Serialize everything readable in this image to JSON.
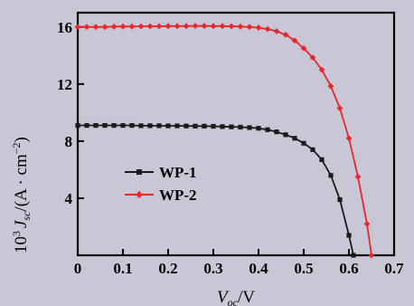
{
  "chart_data": {
    "type": "line",
    "xlabel_main": "V",
    "xlabel_sub": "oc",
    "xlabel_unit": "/V",
    "ylabel_prefix": "10",
    "ylabel_exp": "3",
    "ylabel_main": "J",
    "ylabel_sub": "sc",
    "ylabel_unit_open": "/(A · cm",
    "ylabel_unit_exp": "−2",
    "ylabel_unit_close": ")",
    "xlim": [
      0,
      0.7
    ],
    "ylim": [
      0,
      17
    ],
    "xticks": [
      0,
      0.1,
      0.2,
      0.3,
      0.4,
      0.5,
      0.6,
      0.7
    ],
    "xtick_labels": [
      "0",
      "0.1",
      "0.2",
      "0.3",
      "0.4",
      "0.5",
      "0.6",
      "0.7"
    ],
    "yticks": [
      4,
      8,
      12,
      16
    ],
    "ytick_labels": [
      "4",
      "8",
      "12",
      "16"
    ],
    "grid": false,
    "legend_position": "middle-left",
    "series": [
      {
        "name": "WP-1",
        "color": "#1a1a1a",
        "marker": "square",
        "x": [
          0,
          0.02,
          0.04,
          0.06,
          0.08,
          0.1,
          0.12,
          0.14,
          0.16,
          0.18,
          0.2,
          0.22,
          0.24,
          0.26,
          0.28,
          0.3,
          0.32,
          0.34,
          0.36,
          0.38,
          0.4,
          0.42,
          0.44,
          0.46,
          0.48,
          0.5,
          0.52,
          0.54,
          0.56,
          0.58,
          0.6,
          0.61
        ],
        "y": [
          9.1,
          9.1,
          9.1,
          9.1,
          9.1,
          9.1,
          9.1,
          9.08,
          9.08,
          9.08,
          9.07,
          9.07,
          9.06,
          9.05,
          9.05,
          9.04,
          9.02,
          9.0,
          8.98,
          8.95,
          8.9,
          8.8,
          8.65,
          8.45,
          8.2,
          7.85,
          7.4,
          6.7,
          5.6,
          3.9,
          1.4,
          0
        ]
      },
      {
        "name": "WP-2",
        "color": "#e8262e",
        "marker": "diamond",
        "x": [
          0,
          0.02,
          0.04,
          0.06,
          0.08,
          0.1,
          0.12,
          0.14,
          0.16,
          0.18,
          0.2,
          0.22,
          0.24,
          0.26,
          0.28,
          0.3,
          0.32,
          0.34,
          0.36,
          0.38,
          0.4,
          0.42,
          0.44,
          0.46,
          0.48,
          0.5,
          0.52,
          0.54,
          0.56,
          0.58,
          0.6,
          0.62,
          0.64,
          0.65
        ],
        "y": [
          16.0,
          16.0,
          16.0,
          16.0,
          16.02,
          16.03,
          16.03,
          16.04,
          16.05,
          16.05,
          16.06,
          16.06,
          16.06,
          16.07,
          16.07,
          16.06,
          16.06,
          16.05,
          16.03,
          16.0,
          15.95,
          15.85,
          15.7,
          15.45,
          15.05,
          14.5,
          13.85,
          13.0,
          11.85,
          10.3,
          8.2,
          5.5,
          2.2,
          0
        ]
      }
    ]
  }
}
